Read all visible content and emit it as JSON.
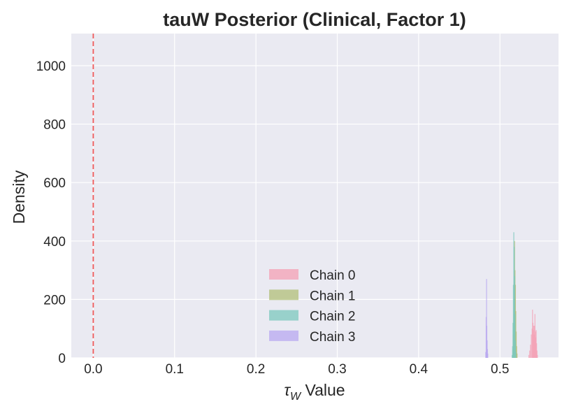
{
  "chart_data": {
    "type": "histogram",
    "title": "tauW Posterior (Clinical, Factor 1)",
    "xlabel_symbol": "τ",
    "xlabel_subscript": "W",
    "xlabel_text": " Value",
    "ylabel": "Density",
    "xlim": [
      -0.027,
      0.572
    ],
    "ylim": [
      0,
      1110
    ],
    "xticks": [
      "0.0",
      "0.1",
      "0.2",
      "0.3",
      "0.4",
      "0.5"
    ],
    "xtick_values": [
      0.0,
      0.1,
      0.2,
      0.3,
      0.4,
      0.5
    ],
    "yticks": [
      "0",
      "200",
      "400",
      "600",
      "800",
      "1000"
    ],
    "ytick_values": [
      0,
      200,
      400,
      600,
      800,
      1000
    ],
    "grid": true,
    "legend_position": "lower-center",
    "reference_line": {
      "x": 0.0,
      "color": "#f05a5a",
      "style": "dashed"
    },
    "series": [
      {
        "name": "Chain 0",
        "color": "#f4a0b4",
        "bins": [
          [
            0.5355,
            10
          ],
          [
            0.5365,
            25
          ],
          [
            0.5375,
            45
          ],
          [
            0.5385,
            80
          ],
          [
            0.5395,
            100
          ],
          [
            0.54,
            165
          ],
          [
            0.5405,
            120
          ],
          [
            0.541,
            95
          ],
          [
            0.5415,
            110
          ],
          [
            0.542,
            80
          ],
          [
            0.5425,
            110
          ],
          [
            0.543,
            150
          ],
          [
            0.5435,
            90
          ],
          [
            0.544,
            70
          ],
          [
            0.5445,
            95
          ],
          [
            0.545,
            50
          ],
          [
            0.5455,
            25
          ],
          [
            0.546,
            10
          ]
        ]
      },
      {
        "name": "Chain 1",
        "color": "#b2bf78",
        "bins": [
          [
            0.5155,
            5
          ],
          [
            0.516,
            30
          ],
          [
            0.5165,
            80
          ],
          [
            0.517,
            150
          ],
          [
            0.5175,
            260
          ],
          [
            0.518,
            400
          ],
          [
            0.5185,
            300
          ],
          [
            0.519,
            250
          ],
          [
            0.5195,
            160
          ],
          [
            0.52,
            90
          ],
          [
            0.5205,
            40
          ],
          [
            0.521,
            15
          ]
        ]
      },
      {
        "name": "Chain 2",
        "color": "#7cc8bd",
        "bins": [
          [
            0.515,
            10
          ],
          [
            0.5155,
            40
          ],
          [
            0.516,
            120
          ],
          [
            0.5165,
            250
          ],
          [
            0.517,
            430
          ],
          [
            0.5175,
            380
          ],
          [
            0.518,
            280
          ],
          [
            0.5185,
            150
          ],
          [
            0.519,
            60
          ],
          [
            0.5195,
            20
          ]
        ]
      },
      {
        "name": "Chain 3",
        "color": "#b8a8f0",
        "bins": [
          [
            0.4825,
            20
          ],
          [
            0.483,
            140
          ],
          [
            0.4835,
            270
          ],
          [
            0.4838,
            110
          ],
          [
            0.4842,
            60
          ],
          [
            0.4846,
            30
          ],
          [
            0.485,
            15
          ]
        ]
      }
    ]
  }
}
